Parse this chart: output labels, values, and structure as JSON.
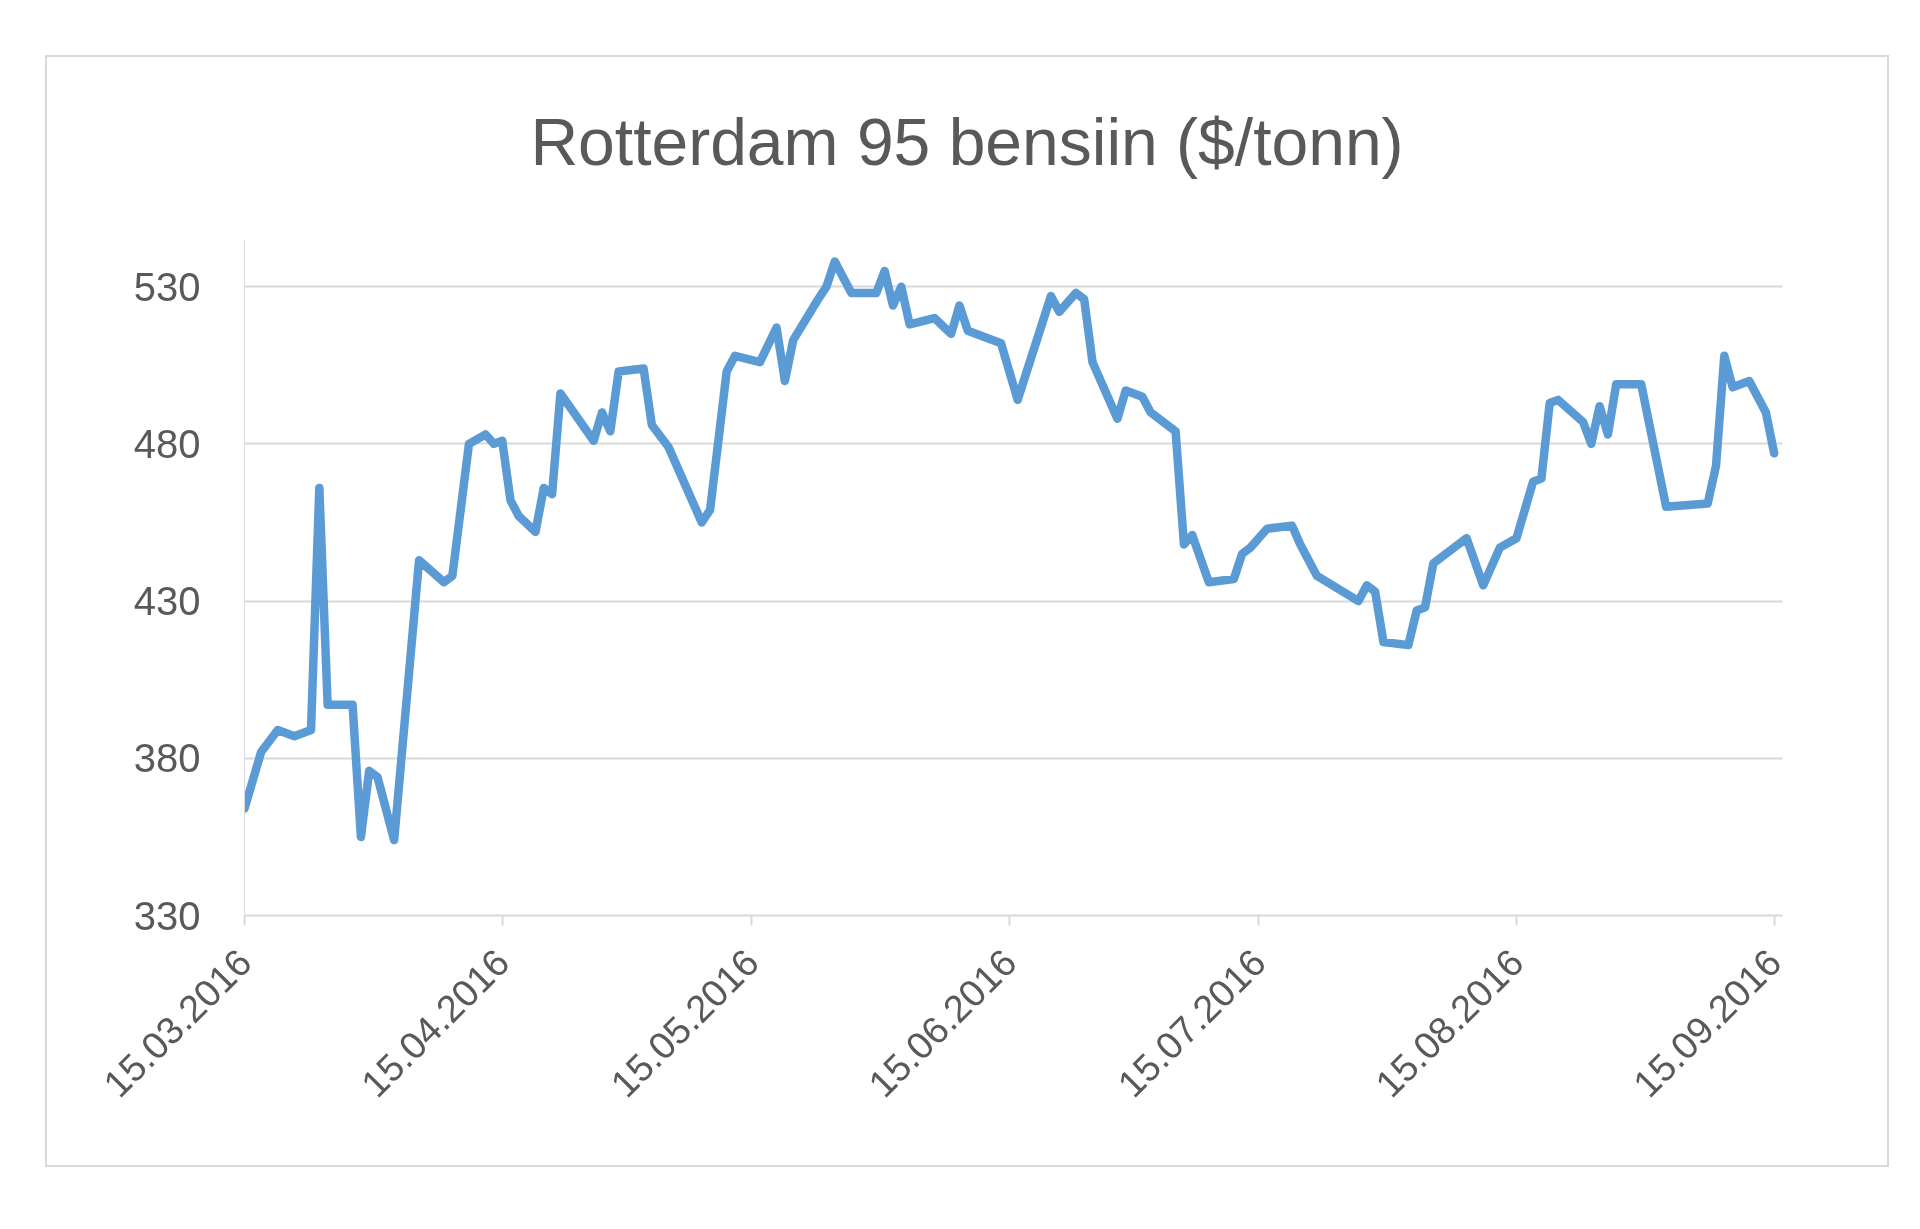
{
  "chart_data": {
    "type": "line",
    "title": "Rotterdam 95 bensiin ($/tonn)",
    "x": [
      "2016-03-15",
      "2016-03-17",
      "2016-03-19",
      "2016-03-21",
      "2016-03-23",
      "2016-03-24",
      "2016-03-25",
      "2016-03-28",
      "2016-03-29",
      "2016-03-30",
      "2016-03-31",
      "2016-04-02",
      "2016-04-05",
      "2016-04-08",
      "2016-04-09",
      "2016-04-11",
      "2016-04-13",
      "2016-04-14",
      "2016-04-15",
      "2016-04-16",
      "2016-04-17",
      "2016-04-19",
      "2016-04-20",
      "2016-04-21",
      "2016-04-22",
      "2016-04-26",
      "2016-04-27",
      "2016-04-28",
      "2016-04-29",
      "2016-05-02",
      "2016-05-03",
      "2016-05-05",
      "2016-05-07",
      "2016-05-09",
      "2016-05-10",
      "2016-05-12",
      "2016-05-13",
      "2016-05-16",
      "2016-05-18",
      "2016-05-19",
      "2016-05-20",
      "2016-05-23",
      "2016-05-24",
      "2016-05-25",
      "2016-05-27",
      "2016-05-30",
      "2016-05-31",
      "2016-06-01",
      "2016-06-02",
      "2016-06-03",
      "2016-06-06",
      "2016-06-08",
      "2016-06-09",
      "2016-06-10",
      "2016-06-14",
      "2016-06-16",
      "2016-06-20",
      "2016-06-21",
      "2016-06-23",
      "2016-06-24",
      "2016-06-25",
      "2016-06-28",
      "2016-06-29",
      "2016-07-01",
      "2016-07-02",
      "2016-07-05",
      "2016-07-06",
      "2016-07-07",
      "2016-07-09",
      "2016-07-12",
      "2016-07-13",
      "2016-07-14",
      "2016-07-16",
      "2016-07-19",
      "2016-07-20",
      "2016-07-22",
      "2016-07-27",
      "2016-07-28",
      "2016-07-29",
      "2016-07-30",
      "2016-08-02",
      "2016-08-03",
      "2016-08-04",
      "2016-08-05",
      "2016-08-09",
      "2016-08-11",
      "2016-08-13",
      "2016-08-15",
      "2016-08-17",
      "2016-08-18",
      "2016-08-19",
      "2016-08-20",
      "2016-08-23",
      "2016-08-24",
      "2016-08-25",
      "2016-08-26",
      "2016-08-27",
      "2016-08-30",
      "2016-09-02",
      "2016-09-07",
      "2016-09-08",
      "2016-09-09",
      "2016-09-10",
      "2016-09-12",
      "2016-09-14",
      "2016-09-15"
    ],
    "series": [
      {
        "color": "#5b9bd5",
        "values": [
          364,
          382,
          389,
          387,
          389,
          466,
          397,
          397,
          355,
          376,
          374,
          354,
          443,
          436,
          438,
          480,
          483,
          480,
          481,
          462,
          457,
          452,
          466,
          464,
          496,
          481,
          490,
          484,
          503,
          504,
          486,
          479,
          467,
          455,
          459,
          503,
          508,
          506,
          517,
          500,
          513,
          526,
          530,
          538,
          528,
          528,
          535,
          524,
          530,
          518,
          520,
          515,
          524,
          516,
          512,
          494,
          527,
          522,
          528,
          526,
          506,
          488,
          497,
          495,
          490,
          484,
          448,
          451,
          436,
          437,
          445,
          447,
          453,
          454,
          448,
          438,
          430,
          435,
          433,
          417,
          416,
          427,
          428,
          442,
          450,
          435,
          447,
          450,
          468,
          469,
          493,
          494,
          487,
          480,
          492,
          483,
          499,
          499,
          460,
          461,
          473,
          508,
          498,
          500,
          490,
          477
        ]
      }
    ],
    "xlim": [
      "2016-03-15",
      "2016-09-16"
    ],
    "xticks": [
      {
        "value": "2016-03-15",
        "label": "15.03.2016"
      },
      {
        "value": "2016-04-15",
        "label": "15.04.2016"
      },
      {
        "value": "2016-05-15",
        "label": "15.05.2016"
      },
      {
        "value": "2016-06-15",
        "label": "15.06.2016"
      },
      {
        "value": "2016-07-15",
        "label": "15.07.2016"
      },
      {
        "value": "2016-08-15",
        "label": "15.08.2016"
      },
      {
        "value": "2016-09-15",
        "label": "15.09.2016"
      }
    ],
    "ylim": [
      330,
      545
    ],
    "yticks": [
      330,
      380,
      430,
      480,
      530
    ],
    "grid": "y",
    "line_style": "solid"
  }
}
